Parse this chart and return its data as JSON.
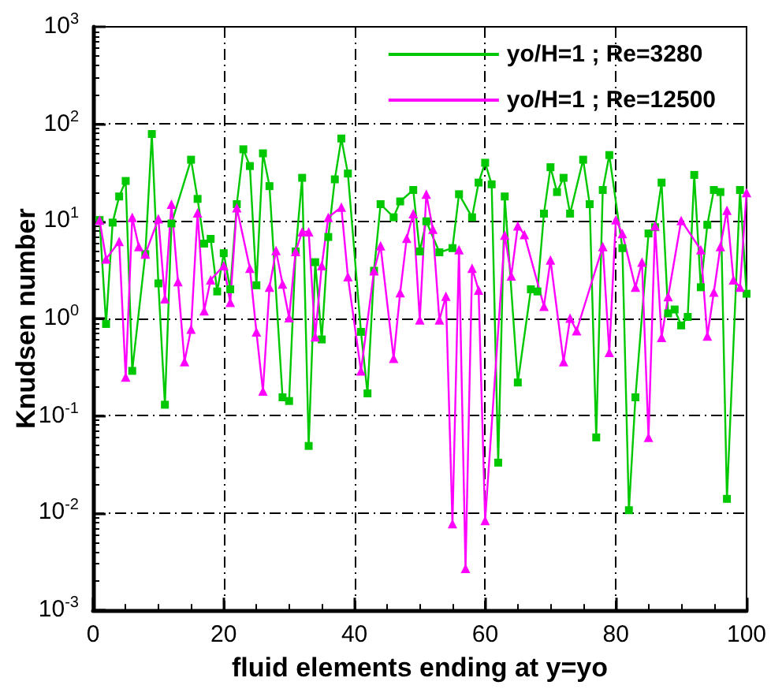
{
  "chart_data": {
    "type": "line",
    "xlabel": "fluid elements ending at y=yo",
    "ylabel": "Knudsen number",
    "xlim": [
      0,
      100
    ],
    "xticks": [
      0,
      20,
      40,
      60,
      80,
      100
    ],
    "ylim": [
      0.001,
      1000
    ],
    "yticks": [
      {
        "value": 0.001,
        "label": "10$^{-3}$"
      },
      {
        "value": 0.01,
        "label": "10$^{-2}$"
      },
      {
        "value": 0.1,
        "label": "10$^{-1}$"
      },
      {
        "value": 1,
        "label": "10$^{0}$"
      },
      {
        "value": 10,
        "label": "10$^{1}$"
      },
      {
        "value": 100,
        "label": "10$^{2}$"
      },
      {
        "value": 1000,
        "label": "10$^{3}$"
      }
    ],
    "log": "y",
    "grid": true,
    "legend": "top right",
    "series": [
      {
        "name": "yo/H=1 ; Re=3280",
        "color": "#00c800",
        "marker": "square",
        "x": [
          1,
          2,
          3,
          4,
          5,
          6,
          8,
          9,
          10,
          11,
          12,
          15,
          16,
          17,
          18,
          19,
          20,
          21,
          22,
          23,
          24,
          25,
          26,
          27,
          29,
          30,
          31,
          32,
          33,
          34,
          35,
          36,
          37,
          38,
          39,
          41,
          42,
          43,
          44,
          46,
          47,
          49,
          50,
          51,
          53,
          55,
          56,
          58,
          59,
          60,
          61,
          62,
          63,
          65,
          67,
          68,
          69,
          70,
          71,
          72,
          73,
          75,
          76,
          77,
          78,
          79,
          81,
          82,
          83,
          85,
          86,
          87,
          88,
          89,
          90,
          91,
          92,
          93,
          94,
          95,
          96,
          97,
          99,
          100
        ],
        "values": [
          10.3,
          0.88,
          9.7,
          18,
          26,
          0.29,
          4.6,
          79,
          2.3,
          0.13,
          9.5,
          43,
          17,
          5.9,
          6.6,
          1.9,
          4.7,
          2.0,
          15,
          55,
          37,
          2.2,
          50,
          23,
          0.155,
          0.142,
          4.9,
          28,
          0.049,
          3.8,
          0.61,
          6.9,
          27,
          71,
          31,
          0.73,
          0.17,
          3.1,
          15,
          11,
          16,
          21,
          4.9,
          10,
          4.8,
          5.3,
          19,
          11,
          25,
          40,
          24,
          0.033,
          18,
          0.22,
          2.0,
          1.9,
          12,
          36,
          20,
          28,
          12,
          43,
          15,
          0.06,
          21,
          48,
          5.3,
          0.0107,
          0.155,
          7.5,
          8.7,
          25,
          1.13,
          1.24,
          0.85,
          1.04,
          30,
          2.1,
          9.2,
          21,
          20,
          0.014,
          21,
          1.8
        ]
      },
      {
        "name": "yo/H=1 ; Re=12500",
        "color": "#ff00ff",
        "marker": "triangle",
        "x": [
          1,
          2,
          4,
          5,
          6,
          7,
          8,
          10,
          11,
          12,
          13,
          14,
          15,
          16,
          17,
          18,
          20,
          21,
          22,
          24,
          25,
          26,
          27,
          28,
          29,
          30,
          31,
          32,
          33,
          34,
          35,
          36,
          38,
          39,
          41,
          43,
          44,
          46,
          47,
          48,
          49,
          50,
          51,
          52,
          53,
          54,
          55,
          56,
          57,
          58,
          59,
          60,
          63,
          64,
          65,
          66,
          69,
          70,
          72,
          73,
          74,
          78,
          79,
          80,
          81,
          83,
          84,
          85,
          86,
          87,
          88,
          90,
          93,
          94,
          95,
          96,
          97,
          98,
          99,
          100
        ],
        "values": [
          10.3,
          4.1,
          6.2,
          0.25,
          11,
          5.5,
          4.6,
          10.6,
          1.6,
          15,
          2.4,
          0.36,
          0.78,
          12.2,
          1.2,
          2.5,
          3.5,
          1.47,
          13.8,
          3.3,
          0.73,
          0.18,
          2.1,
          5.0,
          2.27,
          1.02,
          4.9,
          7.8,
          7.8,
          0.65,
          3.5,
          11,
          14,
          2.7,
          0.29,
          3.1,
          5.6,
          0.39,
          1.85,
          6.7,
          12,
          0.97,
          19,
          8.3,
          0.97,
          1.7,
          0.0078,
          5.1,
          0.0027,
          3.3,
          1.96,
          0.0084,
          7.2,
          2.75,
          9.0,
          7.3,
          1.34,
          4.0,
          0.36,
          1.01,
          0.75,
          5.5,
          0.45,
          10.4,
          7.5,
          2.1,
          3.8,
          0.06,
          9.0,
          0.64,
          1.68,
          10.2,
          5.1,
          0.66,
          1.87,
          5.5,
          13,
          2.5,
          2.1,
          19.8
        ]
      }
    ]
  }
}
